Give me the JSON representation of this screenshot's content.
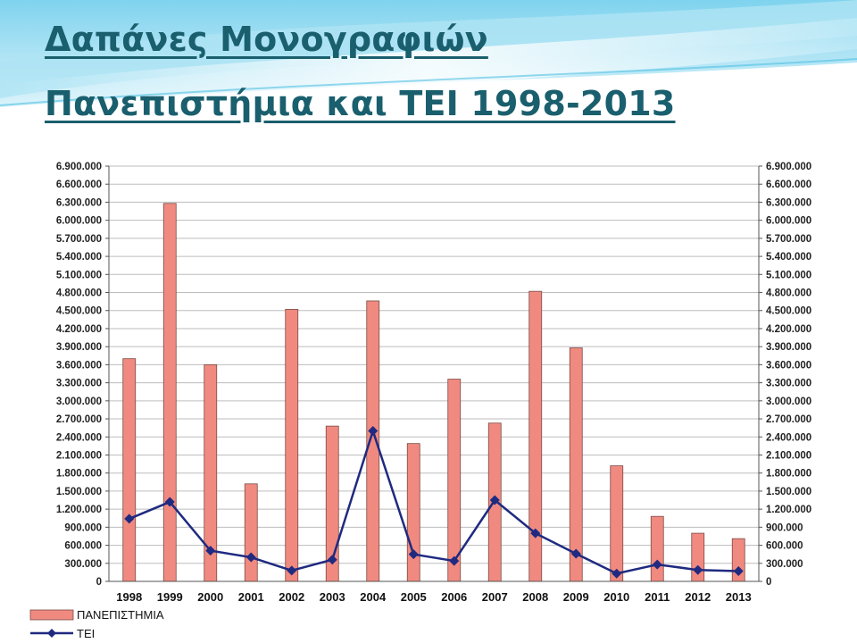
{
  "slide": {
    "title_line1": "Δαπάνες Μονογραφιών",
    "title_line2": "Πανεπιστήμια και ΤΕΙ 1998-2013"
  },
  "chart_data": {
    "type": "bar",
    "categories": [
      "1998",
      "1999",
      "2000",
      "2001",
      "2002",
      "2003",
      "2004",
      "2005",
      "2006",
      "2007",
      "2008",
      "2009",
      "2010",
      "2011",
      "2012",
      "2013"
    ],
    "series": [
      {
        "name": "ΠΑΝΕΠΙΣΤΗΜΙΑ",
        "type": "bar",
        "color": "#f08a80",
        "values": [
          3700000,
          6280000,
          3600000,
          1620000,
          4520000,
          2580000,
          4660000,
          2290000,
          3360000,
          2630000,
          4820000,
          3880000,
          1920000,
          1080000,
          800000,
          710000
        ]
      },
      {
        "name": "ΤΕΙ",
        "type": "line",
        "color": "#1f2a80",
        "values": [
          1040000,
          1320000,
          510000,
          400000,
          180000,
          360000,
          2500000,
          450000,
          340000,
          1350000,
          800000,
          460000,
          130000,
          280000,
          190000,
          170000
        ]
      }
    ],
    "ylim": [
      0,
      6900000
    ],
    "yticks": [
      "0",
      "300.000",
      "600.000",
      "900.000",
      "1.200.000",
      "1.500.000",
      "1.800.000",
      "2.100.000",
      "2.400.000",
      "2.700.000",
      "3.000.000",
      "3.300.000",
      "3.600.000",
      "3.900.000",
      "4.200.000",
      "4.500.000",
      "4.800.000",
      "5.100.000",
      "5.400.000",
      "5.700.000",
      "6.000.000",
      "6.300.000",
      "6.600.000",
      "6.900.000"
    ],
    "ytick_step": 300000,
    "grid": true,
    "secondary_axis": true,
    "legend": "bottom-left"
  }
}
